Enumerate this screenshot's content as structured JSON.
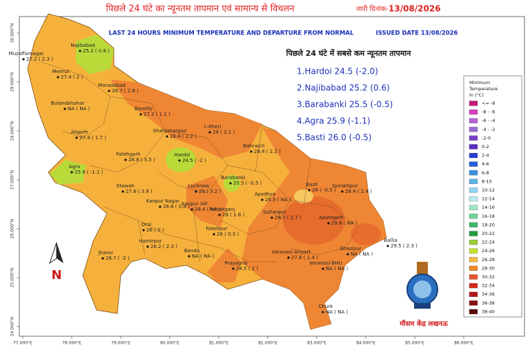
{
  "header": {
    "title_hindi": "पिछले 24 घंटे का न्यूनतम तापमान एवं सामान्य से विचलन",
    "issue_label": "जारी दिनांक-",
    "issue_date": "13/08/2026",
    "title_english": "LAST 24 HOURS MINIMUM TEMPERATURE AND DEPARTURE FROM NORMAL",
    "issued_english": "ISSUED DATE 13/08/2026"
  },
  "ranking": {
    "title": "पिछले 24 घंटे में सबसे कम न्यूनतम तापमान",
    "items": [
      "1.Hardoi 24.5 (-2.0)",
      "2.Najibabad 25.2 (0.6)",
      "3.Barabanki 25.5 (-0.5)",
      "4.Agra 25.9 (-1.1)",
      "5.Basti 26.0 (-0.5)"
    ]
  },
  "stations": [
    {
      "name": "Muzaffarnagar",
      "label": "27.2 ( 2.3 )"
    },
    {
      "name": "Najibabad",
      "label": "25.2 ( 0.6 )"
    },
    {
      "name": "Meerut",
      "label": "27.4 ( 2 )"
    },
    {
      "name": "Moradabad",
      "label": "28.7 ( 2.8 )"
    },
    {
      "name": "Bulandshahar",
      "label": "NA ( NA )"
    },
    {
      "name": "Bareilly",
      "label": "27.2 ( 1.1 )"
    },
    {
      "name": "Aligarh",
      "label": "27.4 ( 1.7 )"
    },
    {
      "name": "Shahjahanpur",
      "label": "28.4 ( 2.2 )"
    },
    {
      "name": "L-Kheri",
      "label": "29 ( 3.1 )"
    },
    {
      "name": "Fatehgarh",
      "label": "28.8 ( 5.5 )"
    },
    {
      "name": "Hardoi",
      "label": "24.5 ( -2 )"
    },
    {
      "name": "Bahraich",
      "label": "28.4 ( 2.2 )"
    },
    {
      "name": "Agra",
      "label": "25.9 ( -1.1 )"
    },
    {
      "name": "Barabanki",
      "label": "25.5 ( -0.5 )"
    },
    {
      "name": "Basti",
      "label": "26 ( -0.5 )"
    },
    {
      "name": "Gorakhpur",
      "label": "28.4 ( 2.4 )"
    },
    {
      "name": "Etawah",
      "label": "27.6 ( 3.8 )"
    },
    {
      "name": "Lucknow",
      "label": "29 ( 3.2 )"
    },
    {
      "name": "Kanpur Nagar",
      "label": "26.8 ( 0.8 )"
    },
    {
      "name": "Kanpur IAF",
      "label": "28.4 ( NA )"
    },
    {
      "name": "Ayodhya",
      "label": "28.5 ( NA )"
    },
    {
      "name": "Fursatganj",
      "label": "28 ( 1.8 )"
    },
    {
      "name": "Sultanpur",
      "label": "28.7 ( 2.7 )"
    },
    {
      "name": "Azamgarh",
      "label": "29.8 ( NA )"
    },
    {
      "name": "Orai",
      "label": "26 ( 0 )"
    },
    {
      "name": "Fatehpur",
      "label": "28 ( 0.3 )"
    },
    {
      "name": "Hamirpur",
      "label": "28.2 ( 2.3 )"
    },
    {
      "name": "Ballia",
      "label": "29.5 ( 2.3 )"
    },
    {
      "name": "Banda",
      "label": "NA ( NA )"
    },
    {
      "name": "Jhansi",
      "label": "26.7 ( -2 )"
    },
    {
      "name": "Prayagraj",
      "label": "28.5 ( 2 )"
    },
    {
      "name": "Varanasi Airport",
      "label": "27.6 ( 1.4 )"
    },
    {
      "name": "Ghazipur",
      "label": "NA ( NA )"
    },
    {
      "name": "Varanasi BHU",
      "label": "NA ( NA )"
    },
    {
      "name": "Churk",
      "label": "NA ( NA )"
    }
  ],
  "legend": {
    "title_1": "Minimum",
    "title_2": "Temperature",
    "title_3": "in (°C)",
    "items": [
      {
        "label": "<= -8",
        "color": "#c0167e"
      },
      {
        "label": "-8 - -6",
        "color": "#d63fbf"
      },
      {
        "label": "-6 - -4",
        "color": "#b464d6"
      },
      {
        "label": "-4 - -2",
        "color": "#9b6bd8"
      },
      {
        "label": "-2-0",
        "color": "#7b3fc9"
      },
      {
        "label": "0-2",
        "color": "#5a2bbf"
      },
      {
        "label": "2-4",
        "color": "#2a3ccf"
      },
      {
        "label": "4-6",
        "color": "#2460d8"
      },
      {
        "label": "6-8",
        "color": "#3a8ee0"
      },
      {
        "label": "8-10",
        "color": "#5bb3ea"
      },
      {
        "label": "10-12",
        "color": "#8fd3f0"
      },
      {
        "label": "12-14",
        "color": "#b8ecf2"
      },
      {
        "label": "14-16",
        "color": "#9fe8c8"
      },
      {
        "label": "16-18",
        "color": "#6fd49a"
      },
      {
        "label": "18-20",
        "color": "#3cb86a"
      },
      {
        "label": "20-22",
        "color": "#1f9b3c"
      },
      {
        "label": "22-24",
        "color": "#9acd32"
      },
      {
        "label": "24-26",
        "color": "#c8e02c"
      },
      {
        "label": "26-28",
        "color": "#f5b942"
      },
      {
        "label": "28-30",
        "color": "#f08a2c"
      },
      {
        "label": "30-32",
        "color": "#e8532a"
      },
      {
        "label": "32-34",
        "color": "#d42a1e"
      },
      {
        "label": "34-36",
        "color": "#b3151a"
      },
      {
        "label": "36-38",
        "color": "#8a0f10"
      },
      {
        "label": "38-40",
        "color": "#5a0a08"
      }
    ]
  },
  "axes": {
    "x_ticks": [
      "77.000°E",
      "78.000°E",
      "79.000°E",
      "80.000°E",
      "81.000°E",
      "82.000°E",
      "83.000°E",
      "84.000°E",
      "85.000°E",
      "86.000°E"
    ],
    "y_ticks": [
      "30.000°N",
      "29.000°N",
      "28.000°N",
      "27.000°N",
      "26.000°N",
      "25.000°N",
      "24.000°N"
    ]
  },
  "north": "N",
  "footer": "मौसम केंद्र लखनऊ"
}
